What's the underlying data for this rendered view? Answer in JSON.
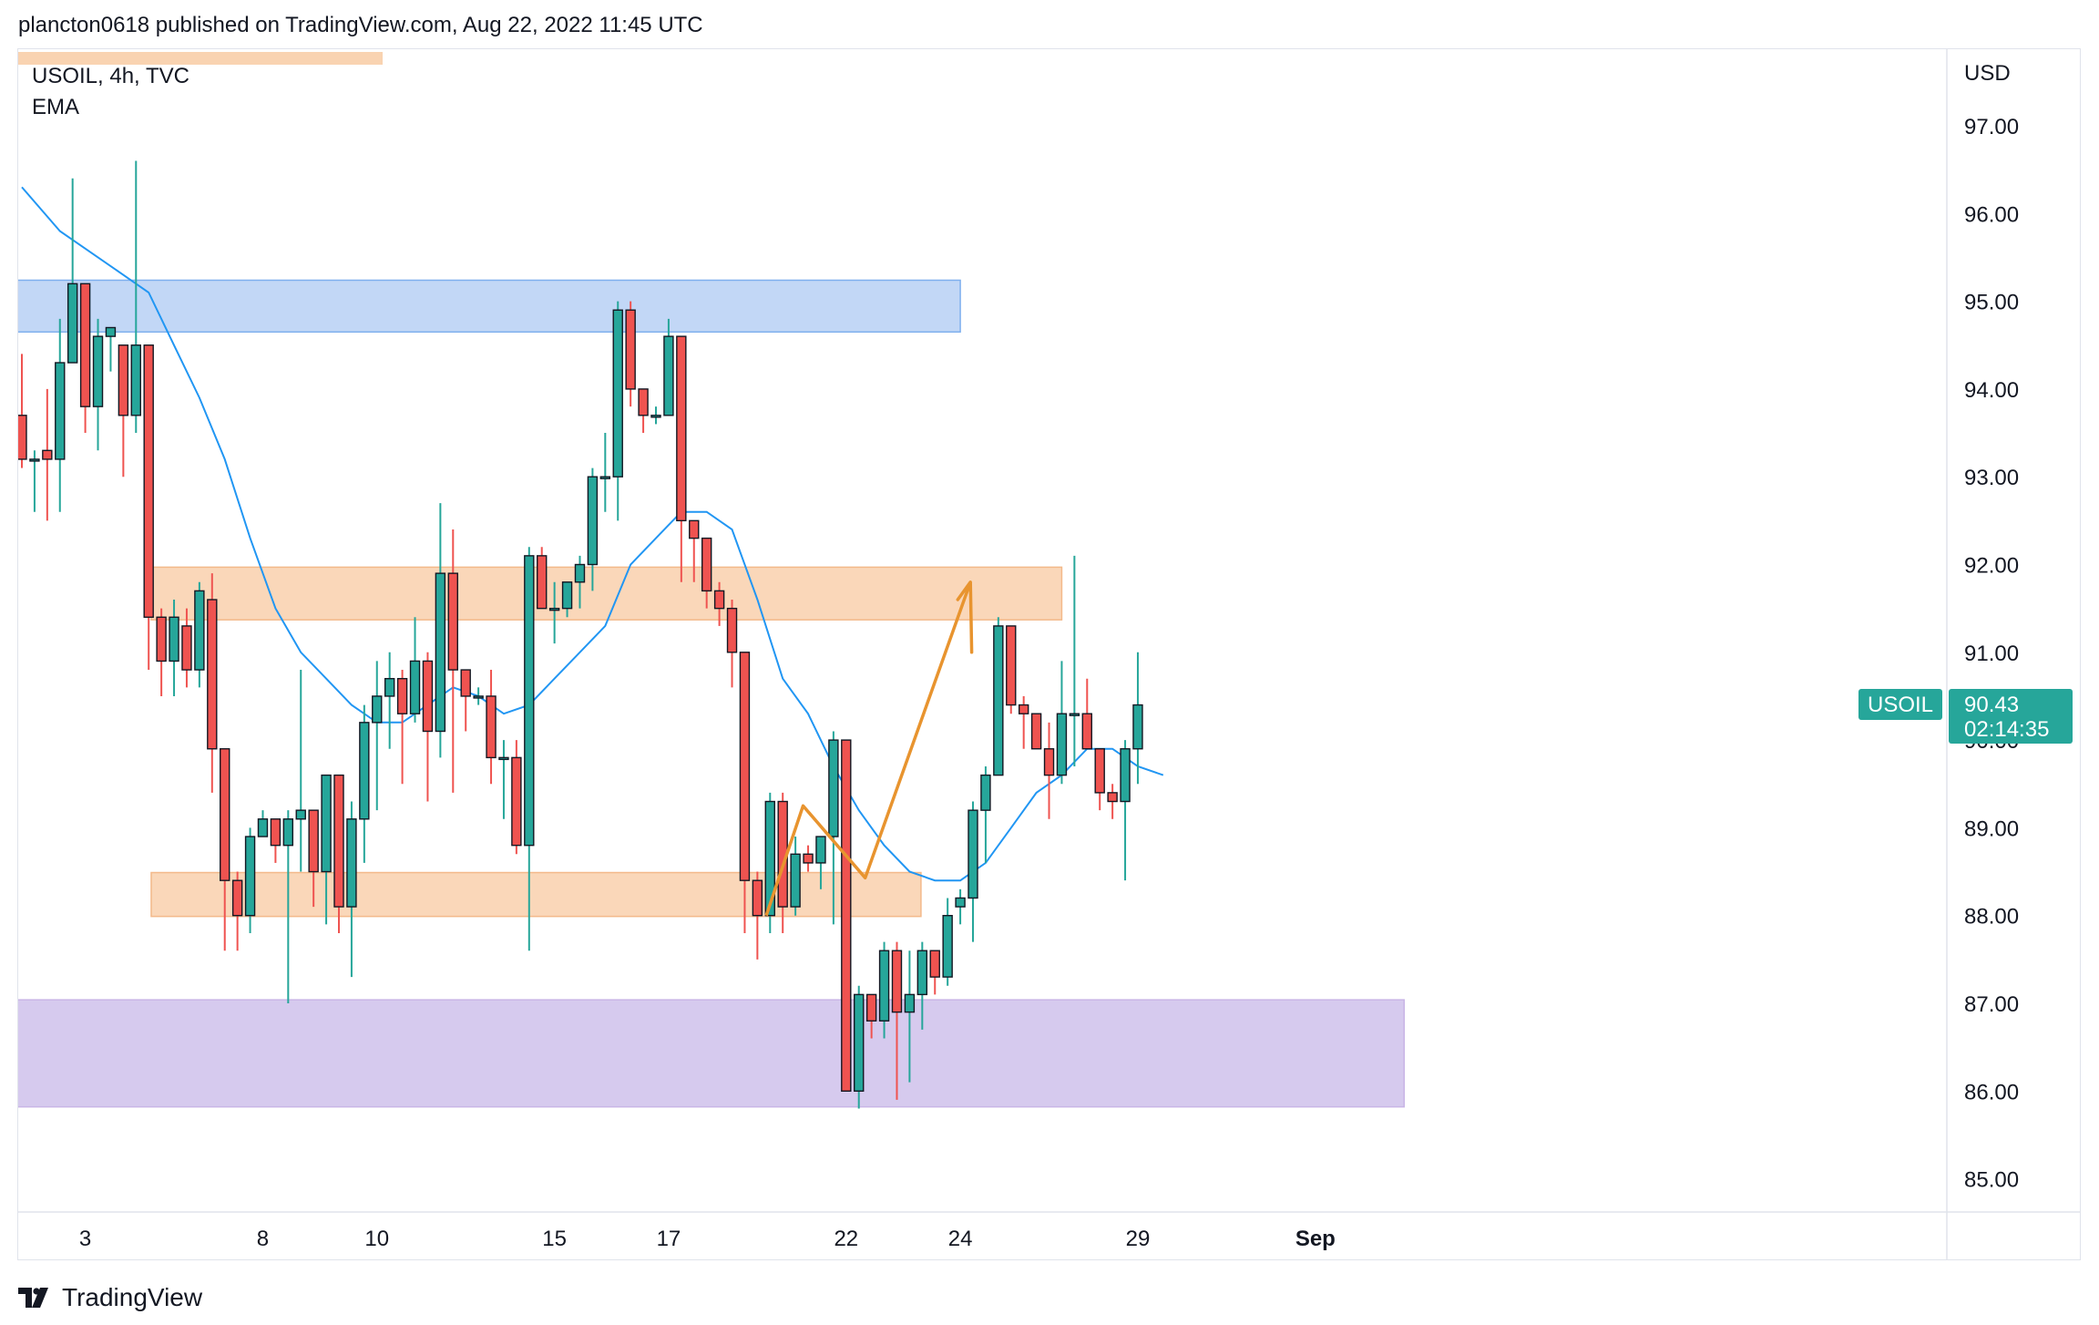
{
  "header": {
    "published_by": "plancton0618 published on TradingView.com, Aug 22, 2022 11:45 UTC"
  },
  "symbol": {
    "line": "USOIL, 4h, TVC",
    "indicator": "EMA"
  },
  "currency_label": "USD",
  "footer": {
    "brand": "TradingView"
  },
  "current_price": {
    "symbol_tag": "USOIL",
    "value": "90.43",
    "countdown": "02:14:35"
  },
  "colors": {
    "up": "#26a69a",
    "down": "#ef5350",
    "ema": "#2196f3",
    "zone_blue": "#bbd3f5",
    "zone_orange": "#f9d3b1",
    "zone_purple": "#d2c4ec",
    "arrow": "#e8942f"
  },
  "chart_data": {
    "type": "candlestick",
    "ylim": [
      84.6,
      97.9
    ],
    "y_ticks": [
      "85.00",
      "86.00",
      "87.00",
      "88.00",
      "89.00",
      "90.00",
      "91.00",
      "92.00",
      "93.00",
      "94.00",
      "95.00",
      "96.00",
      "97.00"
    ],
    "x_ticks": [
      {
        "label": "3",
        "candle": 5
      },
      {
        "label": "8",
        "candle": 19
      },
      {
        "label": "10",
        "candle": 28
      },
      {
        "label": "15",
        "candle": 42
      },
      {
        "label": "17",
        "candle": 51
      },
      {
        "label": "22",
        "candle": 65
      },
      {
        "label": "24",
        "candle": 74
      },
      {
        "label": "29",
        "candle": 88
      },
      {
        "label": "Sep",
        "candle": 102
      }
    ],
    "candles": [
      [
        93.7,
        93.2,
        94.4,
        93.1
      ],
      [
        93.2,
        93.2,
        93.3,
        92.6
      ],
      [
        93.3,
        93.2,
        94.0,
        92.5
      ],
      [
        93.2,
        94.3,
        94.8,
        92.6
      ],
      [
        94.3,
        95.2,
        96.4,
        94.3
      ],
      [
        95.2,
        93.8,
        95.1,
        93.5
      ],
      [
        93.8,
        94.6,
        94.8,
        93.3
      ],
      [
        94.6,
        94.7,
        94.7,
        94.2
      ],
      [
        94.5,
        93.7,
        94.4,
        93.0
      ],
      [
        93.7,
        94.5,
        96.6,
        93.5
      ],
      [
        94.5,
        91.4,
        94.5,
        90.8
      ],
      [
        91.4,
        90.9,
        91.5,
        90.5
      ],
      [
        90.9,
        91.4,
        91.6,
        90.5
      ],
      [
        91.3,
        90.8,
        91.5,
        90.6
      ],
      [
        90.8,
        91.7,
        91.8,
        90.6
      ],
      [
        91.6,
        89.9,
        91.9,
        89.4
      ],
      [
        89.9,
        88.4,
        89.7,
        87.6
      ],
      [
        88.4,
        88.0,
        88.5,
        87.6
      ],
      [
        88.0,
        88.9,
        89.0,
        87.8
      ],
      [
        88.9,
        89.1,
        89.2,
        88.9
      ],
      [
        89.1,
        88.8,
        88.9,
        88.6
      ],
      [
        88.8,
        89.1,
        89.2,
        87.0
      ],
      [
        89.1,
        89.2,
        90.8,
        88.5
      ],
      [
        89.2,
        88.5,
        89.2,
        88.1
      ],
      [
        88.5,
        89.6,
        89.6,
        87.9
      ],
      [
        89.6,
        88.1,
        89.3,
        87.8
      ],
      [
        88.1,
        89.1,
        89.3,
        87.3
      ],
      [
        89.1,
        90.2,
        90.4,
        88.6
      ],
      [
        90.2,
        90.5,
        90.9,
        89.2
      ],
      [
        90.5,
        90.7,
        91.0,
        89.9
      ],
      [
        90.7,
        90.3,
        90.8,
        89.5
      ],
      [
        90.3,
        90.9,
        91.4,
        90.2
      ],
      [
        90.9,
        90.1,
        91.0,
        89.3
      ],
      [
        90.1,
        91.9,
        92.7,
        89.8
      ],
      [
        91.9,
        90.8,
        92.4,
        89.4
      ],
      [
        90.8,
        90.5,
        90.7,
        90.1
      ],
      [
        90.5,
        90.5,
        90.6,
        90.4
      ],
      [
        90.5,
        89.8,
        90.8,
        89.5
      ],
      [
        89.8,
        89.8,
        90.0,
        89.1
      ],
      [
        89.8,
        88.8,
        90.0,
        88.7
      ],
      [
        88.8,
        92.1,
        92.2,
        87.6
      ],
      [
        92.1,
        91.5,
        92.2,
        91.5
      ],
      [
        91.5,
        91.5,
        91.8,
        91.1
      ],
      [
        91.5,
        91.8,
        91.8,
        91.4
      ],
      [
        91.8,
        92.0,
        92.1,
        91.5
      ],
      [
        92.0,
        93.0,
        93.1,
        91.7
      ],
      [
        93.0,
        93.0,
        93.5,
        92.6
      ],
      [
        93.0,
        94.9,
        95.0,
        92.5
      ],
      [
        94.9,
        94.0,
        95.0,
        93.8
      ],
      [
        94.0,
        93.7,
        93.8,
        93.5
      ],
      [
        93.7,
        93.7,
        93.8,
        93.6
      ],
      [
        93.7,
        94.6,
        94.8,
        93.7
      ],
      [
        94.6,
        92.5,
        94.6,
        91.8
      ],
      [
        92.5,
        92.3,
        92.5,
        91.8
      ],
      [
        92.3,
        91.7,
        92.2,
        91.5
      ],
      [
        91.7,
        91.5,
        91.8,
        91.3
      ],
      [
        91.5,
        91.0,
        91.6,
        90.6
      ],
      [
        91.0,
        88.4,
        91.0,
        87.8
      ],
      [
        88.4,
        88.0,
        88.5,
        87.5
      ],
      [
        88.0,
        89.3,
        89.4,
        87.8
      ],
      [
        89.3,
        88.1,
        89.4,
        87.8
      ],
      [
        88.1,
        88.7,
        88.9,
        88.0
      ],
      [
        88.7,
        88.6,
        88.8,
        88.5
      ],
      [
        88.6,
        88.9,
        88.9,
        88.3
      ],
      [
        88.9,
        90.0,
        90.1,
        87.9
      ],
      [
        90.0,
        86.0,
        90.0,
        86.0
      ],
      [
        86.0,
        87.1,
        87.2,
        85.8
      ],
      [
        87.1,
        86.8,
        87.0,
        86.6
      ],
      [
        86.8,
        87.6,
        87.7,
        86.6
      ],
      [
        87.6,
        86.9,
        87.7,
        85.9
      ],
      [
        86.9,
        87.1,
        87.6,
        86.1
      ],
      [
        87.1,
        87.6,
        87.7,
        86.7
      ],
      [
        87.6,
        87.3,
        87.6,
        87.1
      ],
      [
        87.3,
        88.0,
        88.2,
        87.2
      ],
      [
        88.1,
        88.2,
        88.3,
        87.9
      ],
      [
        88.2,
        89.2,
        89.3,
        87.7
      ],
      [
        89.2,
        89.6,
        89.7,
        88.6
      ],
      [
        89.6,
        91.3,
        91.4,
        89.9
      ],
      [
        91.3,
        90.4,
        91.3,
        90.3
      ],
      [
        90.4,
        90.3,
        90.5,
        89.9
      ],
      [
        90.3,
        89.9,
        90.2,
        89.9
      ],
      [
        89.9,
        89.6,
        90.2,
        89.1
      ],
      [
        89.6,
        90.3,
        90.9,
        89.5
      ],
      [
        90.3,
        90.3,
        92.1,
        89.7
      ],
      [
        90.3,
        89.9,
        90.7,
        89.9
      ],
      [
        89.9,
        89.4,
        89.5,
        89.2
      ],
      [
        89.4,
        89.3,
        89.5,
        89.1
      ],
      [
        89.3,
        89.9,
        90.0,
        88.4
      ],
      [
        89.9,
        90.4,
        91.0,
        89.5
      ]
    ],
    "ema": [
      [
        0,
        96.3
      ],
      [
        3,
        95.8
      ],
      [
        5,
        95.6
      ],
      [
        8,
        95.3
      ],
      [
        10,
        95.1
      ],
      [
        12,
        94.5
      ],
      [
        14,
        93.9
      ],
      [
        16,
        93.2
      ],
      [
        18,
        92.3
      ],
      [
        20,
        91.5
      ],
      [
        22,
        91.0
      ],
      [
        24,
        90.7
      ],
      [
        26,
        90.4
      ],
      [
        28,
        90.2
      ],
      [
        30,
        90.2
      ],
      [
        32,
        90.4
      ],
      [
        34,
        90.6
      ],
      [
        36,
        90.5
      ],
      [
        38,
        90.3
      ],
      [
        40,
        90.4
      ],
      [
        42,
        90.7
      ],
      [
        44,
        91.0
      ],
      [
        46,
        91.3
      ],
      [
        48,
        92.0
      ],
      [
        50,
        92.3
      ],
      [
        52,
        92.6
      ],
      [
        54,
        92.6
      ],
      [
        56,
        92.4
      ],
      [
        58,
        91.6
      ],
      [
        60,
        90.7
      ],
      [
        62,
        90.3
      ],
      [
        64,
        89.7
      ],
      [
        66,
        89.2
      ],
      [
        68,
        88.8
      ],
      [
        70,
        88.5
      ],
      [
        72,
        88.4
      ],
      [
        74,
        88.4
      ],
      [
        76,
        88.6
      ],
      [
        78,
        89.0
      ],
      [
        80,
        89.4
      ],
      [
        82,
        89.6
      ],
      [
        84,
        89.9
      ],
      [
        86,
        89.9
      ],
      [
        88,
        89.7
      ],
      [
        90,
        89.6
      ]
    ],
    "zones": [
      {
        "name": "resistance-blue",
        "y1": 94.65,
        "y2": 95.24,
        "x1": -0.5,
        "x2": 74,
        "color": "#bbd3f5"
      },
      {
        "name": "resistance-orange",
        "y1": 91.37,
        "y2": 91.97,
        "x1": 10.2,
        "x2": 82,
        "color": "#f9d3b1"
      },
      {
        "name": "support-orange",
        "y1": 87.99,
        "y2": 88.49,
        "x1": 10.2,
        "x2": 70.9,
        "color": "#f9d3b1"
      },
      {
        "name": "demand-purple",
        "y1": 85.82,
        "y2": 87.04,
        "x1": -0.5,
        "x2": 109,
        "color": "#d2c4ec"
      }
    ],
    "projection": [
      [
        58.7,
        88.0
      ],
      [
        61.6,
        89.25
      ],
      [
        66.5,
        88.43
      ],
      [
        74.8,
        91.8
      ]
    ],
    "arrow_head_left": [
      73.8,
      91.6
    ],
    "arrow_head_right": [
      74.9,
      91.0
    ]
  }
}
